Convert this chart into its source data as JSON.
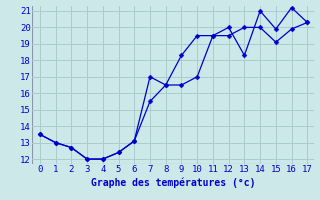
{
  "xlabel": "Graphe des températures (°c)",
  "bg_color": "#cce8e8",
  "grid_color": "#aacccc",
  "line_color": "#0000cc",
  "x_upper": [
    0,
    1,
    2,
    3,
    4,
    5,
    6,
    7,
    8,
    9,
    10,
    11,
    12,
    13,
    14,
    15,
    16,
    17
  ],
  "y_upper": [
    13.5,
    13.0,
    12.7,
    12.0,
    12.0,
    12.4,
    13.1,
    17.0,
    16.5,
    18.3,
    19.5,
    19.5,
    20.0,
    18.3,
    21.0,
    19.9,
    21.2,
    20.3
  ],
  "x_lower": [
    0,
    1,
    2,
    3,
    4,
    5,
    6,
    7,
    8,
    9,
    10,
    11,
    12,
    13,
    14,
    15,
    16,
    17
  ],
  "y_lower": [
    13.5,
    13.0,
    12.7,
    12.0,
    12.0,
    12.4,
    13.1,
    15.5,
    16.5,
    16.5,
    17.0,
    19.5,
    19.5,
    20.0,
    20.0,
    19.1,
    19.9,
    20.3
  ],
  "ylim": [
    11.7,
    21.3
  ],
  "xlim": [
    -0.5,
    17.4
  ],
  "yticks": [
    12,
    13,
    14,
    15,
    16,
    17,
    18,
    19,
    20,
    21
  ],
  "xticks": [
    0,
    1,
    2,
    3,
    4,
    5,
    6,
    7,
    8,
    9,
    10,
    11,
    12,
    13,
    14,
    15,
    16,
    17
  ],
  "xlabel_fontsize": 7,
  "tick_fontsize": 6.5,
  "linewidth": 0.9,
  "markersize": 2.5
}
